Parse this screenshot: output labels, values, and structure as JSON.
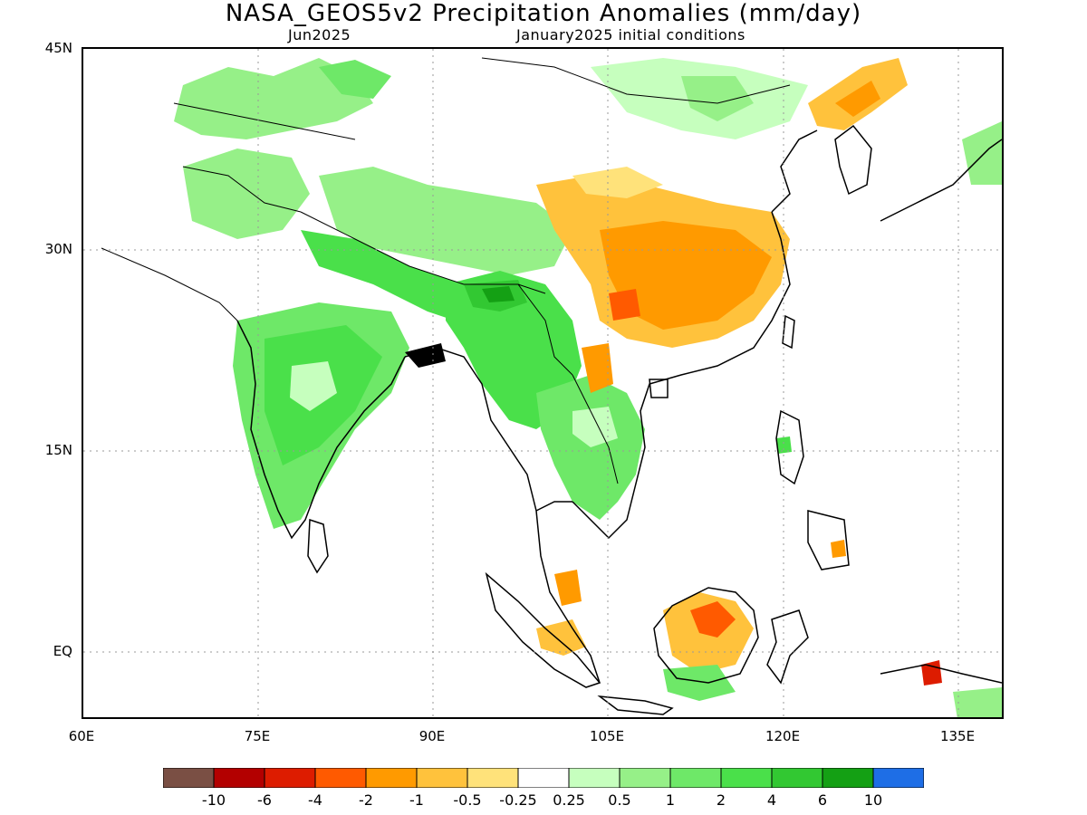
{
  "title": "NASA_GEOS5v2 Precipitation Anomalies (mm/day)",
  "subtitle_left": "Jun2025",
  "subtitle_right": "January2025 initial conditions",
  "lat_labels": [
    "45N",
    "30N",
    "15N",
    "EQ"
  ],
  "lon_labels": [
    "60E",
    "75E",
    "90E",
    "105E",
    "120E",
    "135E"
  ],
  "colorbar": {
    "colors": [
      "#7a4f44",
      "#b30000",
      "#dd1c00",
      "#ff5a00",
      "#ff9a00",
      "#ffc23c",
      "#ffe27a",
      "#ffffff",
      "#c6ffbe",
      "#96f088",
      "#6ee868",
      "#4ae04a",
      "#32c832",
      "#14a014",
      "#1e6ee6"
    ],
    "labels": [
      "-10",
      "-6",
      "-4",
      "-2",
      "-1",
      "-0.5",
      "-0.25",
      "0.25",
      "0.5",
      "1",
      "2",
      "4",
      "6",
      "10"
    ]
  },
  "legend_colors": {
    "dry_strong": "#ff5a00",
    "dry_moderate": "#ff9a00",
    "dry_weak": "#ffc23c",
    "dry_light": "#ffe27a",
    "wet_light": "#c6ffbe",
    "wet_weak": "#96f088",
    "wet_moderate": "#6ee868",
    "wet_strong": "#4ae04a",
    "wet_heavy": "#32c832",
    "wet_extreme": "#14a014",
    "very_dry": "#dd1c00",
    "darkest": "#000000"
  }
}
